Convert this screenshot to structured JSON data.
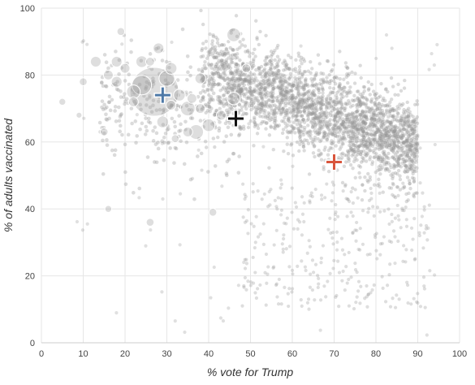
{
  "chart_data": {
    "type": "scatter",
    "title": "",
    "xlabel": "% vote for Trump",
    "ylabel": "% of adults vaccinated",
    "xlim": [
      0,
      100
    ],
    "ylim": [
      0,
      100
    ],
    "x_ticks": [
      0,
      10,
      20,
      30,
      40,
      50,
      60,
      70,
      80,
      90,
      100
    ],
    "y_ticks": [
      0,
      20,
      40,
      60,
      80,
      100
    ],
    "grid": true,
    "legend": "none",
    "point_color": "#999999",
    "large_points": [
      {
        "x": 27,
        "y": 75,
        "size": 5.0
      },
      {
        "x": 24,
        "y": 77,
        "size": 2.0
      },
      {
        "x": 30,
        "y": 79,
        "size": 1.6
      },
      {
        "x": 22,
        "y": 75,
        "size": 1.4
      },
      {
        "x": 35,
        "y": 70,
        "size": 1.5
      },
      {
        "x": 46,
        "y": 73,
        "size": 1.3
      },
      {
        "x": 40,
        "y": 65,
        "size": 1.3
      },
      {
        "x": 37,
        "y": 63,
        "size": 1.5
      },
      {
        "x": 29,
        "y": 66,
        "size": 1.2
      },
      {
        "x": 33,
        "y": 74,
        "size": 1.2
      },
      {
        "x": 38,
        "y": 79,
        "size": 1.1
      },
      {
        "x": 43,
        "y": 68,
        "size": 1.0
      },
      {
        "x": 31,
        "y": 71,
        "size": 1.0
      },
      {
        "x": 20,
        "y": 82,
        "size": 1.0
      },
      {
        "x": 18,
        "y": 78,
        "size": 1.1
      },
      {
        "x": 16,
        "y": 80,
        "size": 1.0
      },
      {
        "x": 13,
        "y": 84,
        "size": 1.1
      },
      {
        "x": 18,
        "y": 84,
        "size": 1.1
      },
      {
        "x": 24,
        "y": 84,
        "size": 1.2
      },
      {
        "x": 31,
        "y": 82,
        "size": 1.2
      },
      {
        "x": 28,
        "y": 88,
        "size": 1.1
      },
      {
        "x": 46,
        "y": 92,
        "size": 1.4
      },
      {
        "x": 26,
        "y": 84,
        "size": 0.9
      },
      {
        "x": 19,
        "y": 93,
        "size": 0.8
      },
      {
        "x": 10,
        "y": 78,
        "size": 0.8
      },
      {
        "x": 9,
        "y": 68,
        "size": 0.6
      },
      {
        "x": 5,
        "y": 72,
        "size": 0.7
      },
      {
        "x": 26,
        "y": 36,
        "size": 0.8
      },
      {
        "x": 16,
        "y": 40,
        "size": 0.7
      },
      {
        "x": 15,
        "y": 63,
        "size": 0.8
      },
      {
        "x": 35,
        "y": 63,
        "size": 1.0
      },
      {
        "x": 36,
        "y": 73,
        "size": 1.0
      },
      {
        "x": 38,
        "y": 70,
        "size": 1.0
      },
      {
        "x": 49,
        "y": 82,
        "size": 0.9
      },
      {
        "x": 32,
        "y": 61,
        "size": 0.8
      },
      {
        "x": 41,
        "y": 39,
        "size": 0.8
      },
      {
        "x": 22,
        "y": 72,
        "size": 1.0
      }
    ],
    "markers": [
      {
        "x": 29,
        "y": 74,
        "color": "#4e79a7"
      },
      {
        "x": 46.5,
        "y": 67,
        "color": "#111111"
      },
      {
        "x": 70,
        "y": 54,
        "color": "#d9553c"
      }
    ]
  }
}
